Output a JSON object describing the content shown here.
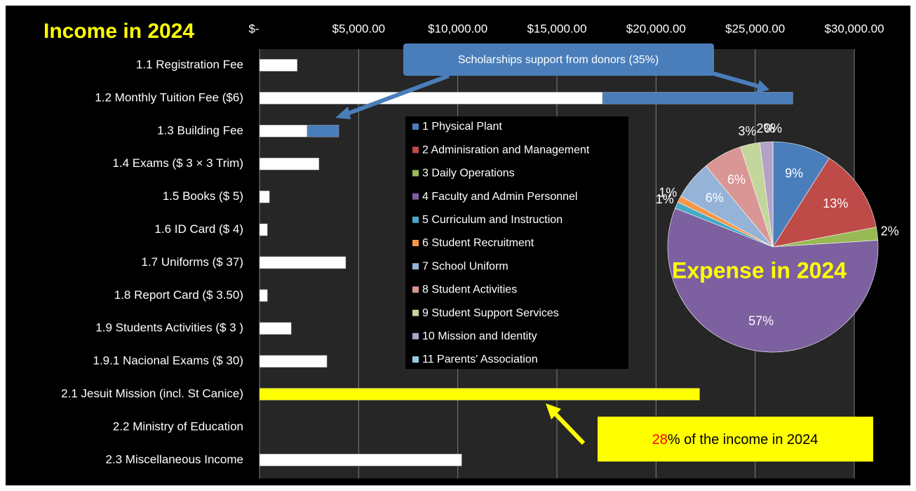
{
  "chart_data": [
    {
      "type": "barh",
      "title": "Income in 2024",
      "categories": [
        "1.1 Registration Fee",
        "1.2 Monthly Tuition Fee ($6)",
        "1.3 Building Fee",
        "1.4 Exams ($ 3 × 3 Trim)",
        "1.5 Books ($ 5)",
        "1.6 ID Card ($ 4)",
        "1.7 Uniforms ($ 37)",
        "1.8 Report Card ($ 3.50)",
        "1.9 Students Activities ($ 3 )",
        "1.9.1 Nacional Exams ($ 30)",
        "2.1 Jesuit Mission (incl. St Canice)",
        "2.2 Ministry of Education",
        "2.3 Miscellaneous Income"
      ],
      "series": [
        {
          "color": "#ffffff",
          "colors": [
            "#ffffff",
            "#ffffff",
            "#ffffff",
            "#ffffff",
            "#ffffff",
            "#ffffff",
            "#ffffff",
            "#ffffff",
            "#ffffff",
            "#ffffff",
            "#ffff00",
            "#ffffff",
            "#ffffff"
          ],
          "values": [
            1900,
            17300,
            2400,
            3000,
            500,
            400,
            4350,
            400,
            1600,
            3400,
            22200,
            0,
            10200
          ]
        },
        {
          "color": "#4a7ebb",
          "values": [
            null,
            9600,
            1600,
            null,
            null,
            null,
            null,
            null,
            null,
            null,
            null,
            null,
            null
          ]
        }
      ],
      "xlim": [
        0,
        30000
      ],
      "xticks": [
        {
          "value": 0,
          "label": "$-"
        },
        {
          "value": 5000,
          "label": "$5,000.00"
        },
        {
          "value": 10000,
          "label": "$10,000.00"
        },
        {
          "value": 15000,
          "label": "$15,000.00"
        },
        {
          "value": 20000,
          "label": "$20,000.00"
        },
        {
          "value": 25000,
          "label": "$25,000.00"
        },
        {
          "value": 30000,
          "label": "$30,000.00"
        }
      ],
      "grid": true,
      "annotations": {
        "scholarships": "Scholarships support from donors (35%)",
        "income_share_number": "28",
        "income_share_text": "% of the income in 2024"
      }
    },
    {
      "type": "pie",
      "title": "Expense in 2024",
      "categories": [
        "1 Physical Plant",
        "2 Adminisration and Management",
        "3 Daily Operations",
        "4 Faculty and Admin Personnel",
        "5 Curriculum and Instruction",
        "6 Student Recruitment",
        "7 School Uniform",
        "8 Student Activities",
        "9 Student Support Services",
        "10 Mission and Identity",
        "11 Parents' Association"
      ],
      "values": [
        9,
        13,
        2,
        57,
        1,
        1,
        6,
        6,
        3,
        2,
        0
      ],
      "value_labels": [
        "9%",
        "13%",
        "2%",
        "57%",
        "1%",
        "1%",
        "6%",
        "6%",
        "3%",
        "2%",
        "0%"
      ],
      "colors": [
        "#4a7ebb",
        "#be4b48",
        "#98b954",
        "#7d60a0",
        "#46aac5",
        "#f79646",
        "#95b3d7",
        "#d99694",
        "#c3d69b",
        "#b3a2c7",
        "#93cddd"
      ],
      "legend": "left"
    }
  ]
}
